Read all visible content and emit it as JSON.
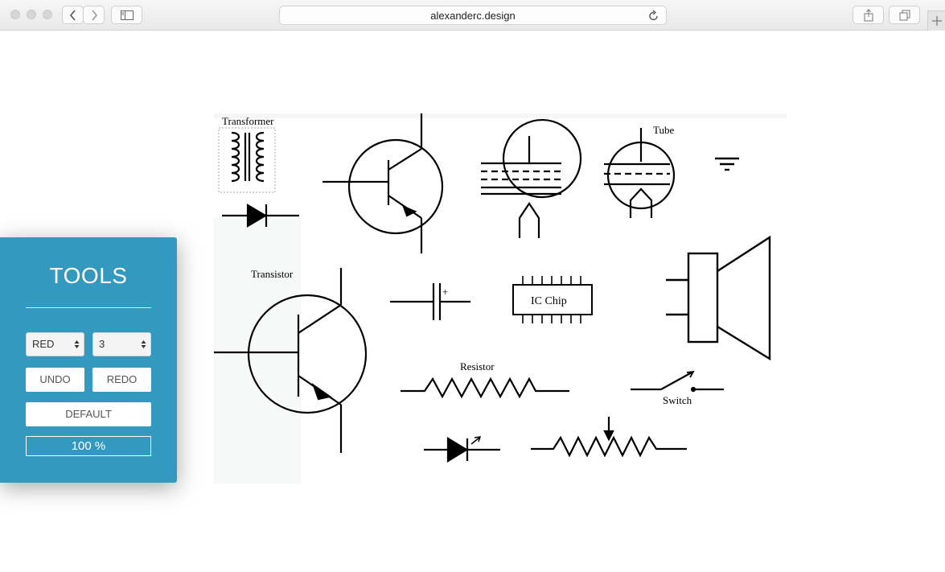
{
  "browser": {
    "url": "alexanderc.design"
  },
  "tools": {
    "title": "TOOLS",
    "color_select": {
      "value": "RED"
    },
    "size_select": {
      "value": "3"
    },
    "undo_label": "UNDO",
    "redo_label": "REDO",
    "default_label": "DEFAULT",
    "zoom_label": "100 %"
  },
  "canvas": {
    "labels": {
      "transformer": "Transformer",
      "tube": "Tube",
      "transistor": "Transistor",
      "ic_chip": "IC Chip",
      "resistor": "Resistor",
      "switch": "Switch",
      "plus": "+"
    }
  }
}
